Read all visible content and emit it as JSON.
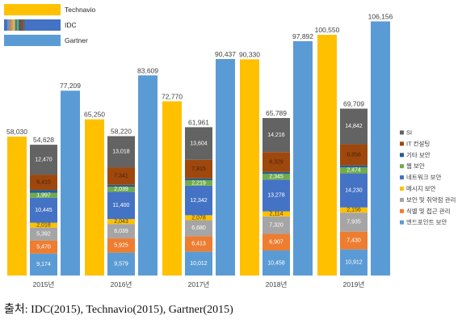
{
  "chart_data": {
    "type": "bar",
    "categories": [
      "2015년",
      "2016년",
      "2017년",
      "2018년",
      "2019년"
    ],
    "ylim": [
      0,
      108000
    ],
    "grid": false,
    "legend": "top-left",
    "series": [
      {
        "name": "Technavio",
        "color": "#FFC000",
        "values": [
          58030,
          65250,
          72770,
          90330,
          100550
        ],
        "labels": [
          "58,030",
          "65,250",
          "72,770",
          "90,330",
          "100,550"
        ]
      },
      {
        "name": "IDC",
        "color": "#4472C4",
        "stacked": true,
        "segment_legend": "right",
        "values": [
          54628,
          58220,
          61961,
          65789,
          69709
        ],
        "labels": [
          "54,628",
          "58,220",
          "61,961",
          "65,789",
          "69,709"
        ],
        "segments": [
          {
            "name": "엔드포인트 보안",
            "color": "#5B9BD5",
            "label_color": "#FFFFFF",
            "values": [
              9174,
              9579,
              10012,
              10458,
              10912
            ],
            "labels": [
              "9,174",
              "9,579",
              "10,012",
              "10,458",
              "10,912"
            ]
          },
          {
            "name": "식별 및 접근 관리",
            "color": "#ED7D31",
            "label_color": "#FFFFFF",
            "values": [
              5470,
              5925,
              6413,
              6907,
              7430
            ],
            "labels": [
              "5,470",
              "5,925",
              "6,413",
              "6,907",
              "7,430"
            ]
          },
          {
            "name": "보안 및 취약점 관리",
            "color": "#A5A5A5",
            "label_color": "#FFFFFF",
            "values": [
              5392,
              6039,
              6680,
              7320,
              7935
            ],
            "labels": [
              "5,392",
              "6,039",
              "6,680",
              "7,320",
              "7,935"
            ]
          },
          {
            "name": "메시지 보안",
            "color": "#FFC000",
            "label_color": "#404040",
            "values": [
              2018,
              2043,
              2078,
              2114,
              2156
            ],
            "labels": [
              "2,018",
              "2,043",
              "2,078",
              "2,114",
              "2,156"
            ]
          },
          {
            "name": "네트워크 보안",
            "color": "#4472C4",
            "label_color": "#FFFFFF",
            "values": [
              10445,
              11400,
              12342,
              13278,
              14230
            ],
            "labels": [
              "10,445",
              "11,400",
              "12,342",
              "13,278",
              "14,230"
            ]
          },
          {
            "name": "웹 보안",
            "color": "#70AD47",
            "label_color": "#FFFFFF",
            "values": [
              1997,
              2039,
              2219,
              2345,
              2474
            ],
            "labels": [
              "1,997",
              "2,039",
              "2,219",
              "2,345",
              "2,474"
            ]
          },
          {
            "name": "기타 보안",
            "color": "#255E91",
            "values": [
              1252,
              836,
              798,
              822,
              874
            ]
          },
          {
            "name": "IT 컨설팅",
            "color": "#9E480E",
            "label_color": "#4A2206",
            "values": [
              6410,
              7341,
              7815,
              8329,
              8856
            ],
            "labels": [
              "6,410",
              "7,341",
              "7,815",
              "8,329",
              "8,856"
            ]
          },
          {
            "name": "SI",
            "color": "#636363",
            "label_color": "#FFFFFF",
            "values": [
              12470,
              13018,
              13604,
              14216,
              14842
            ],
            "labels": [
              "12,470",
              "13,018",
              "13,604",
              "14,216",
              "14,842"
            ]
          }
        ]
      },
      {
        "name": "Gartner",
        "color": "#5B9BD5",
        "values": [
          77209,
          83609,
          90437,
          97892,
          106156
        ],
        "labels": [
          "77,209",
          "83,609",
          "90,437",
          "97,892",
          "106,156"
        ]
      }
    ]
  },
  "source": "출처: IDC(2015), Technavio(2015), Gartner(2015)"
}
